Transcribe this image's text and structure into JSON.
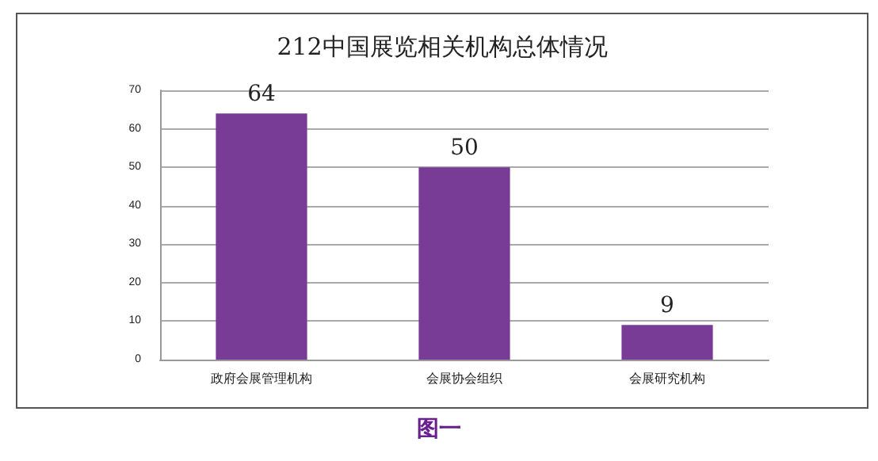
{
  "chart_data": {
    "type": "bar",
    "title": "212中国展览相关机构总体情况",
    "categories": [
      "政府会展管理机构",
      "会展协会组织",
      "会展研究机构"
    ],
    "values": [
      64,
      50,
      9
    ],
    "color": "#783c96",
    "ylim": [
      0,
      70
    ],
    "yticks": [
      0,
      10,
      20,
      30,
      40,
      50,
      60,
      70
    ],
    "grid": "y",
    "data_labels": true,
    "annotations": [
      "图一"
    ]
  }
}
